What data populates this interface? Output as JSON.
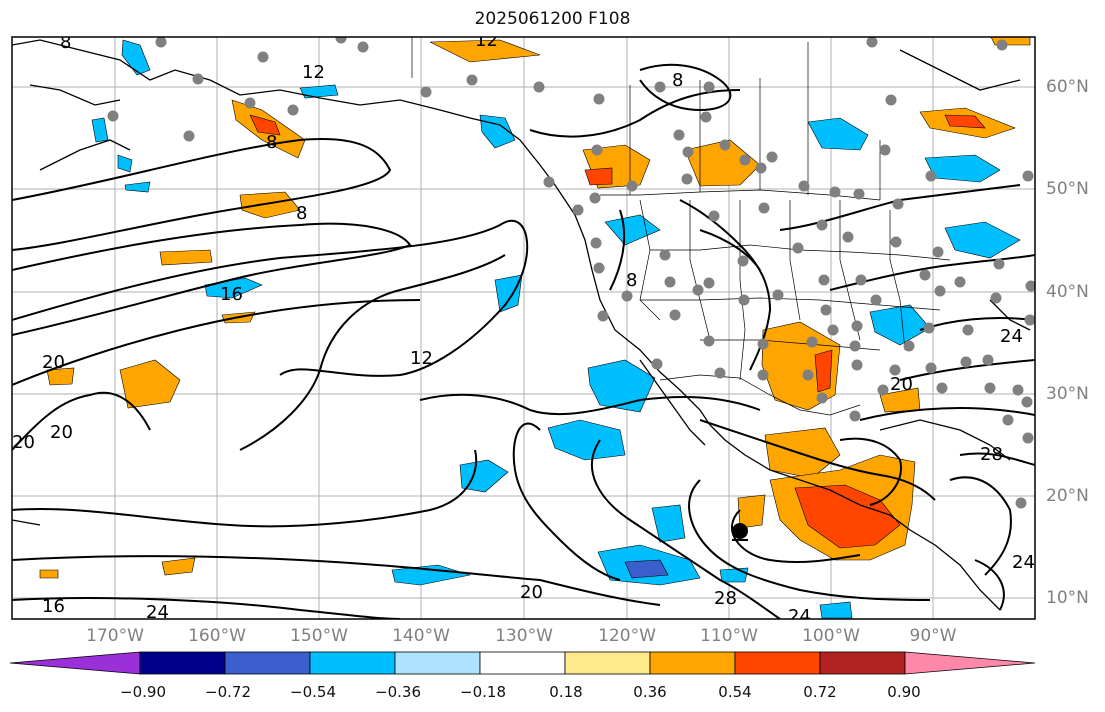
{
  "title": "2025061200 F108",
  "lon_labels": [
    "170°W",
    "160°W",
    "150°W",
    "140°W",
    "130°W",
    "120°W",
    "110°W",
    "100°W",
    "90°W"
  ],
  "lat_labels": [
    "60°N",
    "50°N",
    "40°N",
    "30°N",
    "20°N",
    "10°N"
  ],
  "contour_labels": [
    "8",
    "12",
    "12",
    "8",
    "8",
    "16",
    "8",
    "20",
    "20",
    "20",
    "12",
    "8",
    "20",
    "28",
    "24",
    "20",
    "24",
    "16",
    "24",
    "28",
    "24"
  ],
  "colorbar": {
    "labels": [
      "−0.90",
      "−0.72",
      "−0.54",
      "−0.36",
      "−0.18",
      "0.18",
      "0.36",
      "0.54",
      "0.72",
      "0.90"
    ],
    "colors": [
      "#9b30d9",
      "#00008b",
      "#3a5fcd",
      "#00bfff",
      "#afe2ff",
      "#ffffff",
      "#ffe98a",
      "#ffa500",
      "#ff4500",
      "#b22222",
      "#ff88aa"
    ],
    "extend": "both"
  },
  "colors": {
    "frame": "#000000",
    "grid": "#b0b0b0",
    "station": "#808080",
    "contour": "#000000",
    "tick_label": "#808080"
  },
  "marker": "storm-center-icon"
}
